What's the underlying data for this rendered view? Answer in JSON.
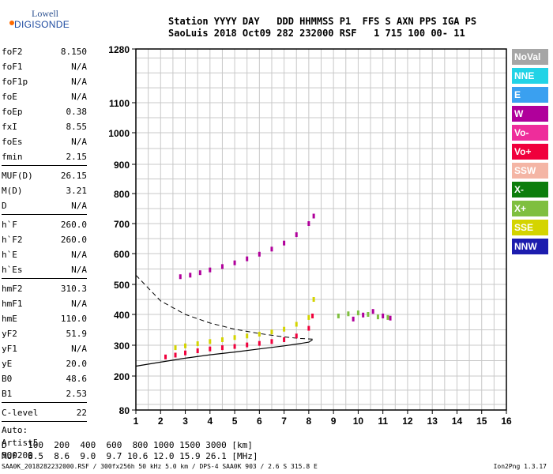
{
  "logo": {
    "line1": "Lowell",
    "line2": "DIGISONDE"
  },
  "header": {
    "line1": "Station YYYY DAY   DDD HHMMSS P1  FFS S AXN PPS IGA PS",
    "line2": "SaoLuis 2018 Oct09 282 232000 RSF   1 715 100 00- 11"
  },
  "params_group1": [
    {
      "key": "foF2",
      "val": "8.150"
    },
    {
      "key": "foF1",
      "val": "N/A"
    },
    {
      "key": "foF1p",
      "val": "N/A"
    },
    {
      "key": "foE",
      "val": "N/A"
    },
    {
      "key": "foEp",
      "val": "0.38"
    },
    {
      "key": "fxI",
      "val": "8.55"
    },
    {
      "key": "foEs",
      "val": "N/A"
    },
    {
      "key": "fmin",
      "val": "2.15"
    }
  ],
  "params_group2": [
    {
      "key": "MUF(D)",
      "val": "26.15"
    },
    {
      "key": "M(D)",
      "val": "3.21"
    },
    {
      "key": "D",
      "val": "N/A"
    }
  ],
  "params_group3": [
    {
      "key": "h`F",
      "val": "260.0"
    },
    {
      "key": "h`F2",
      "val": "260.0"
    },
    {
      "key": "h`E",
      "val": "N/A"
    },
    {
      "key": "h`Es",
      "val": "N/A"
    }
  ],
  "params_group4": [
    {
      "key": "hmF2",
      "val": "310.3"
    },
    {
      "key": "hmF1",
      "val": "N/A"
    },
    {
      "key": "hmE",
      "val": "110.0"
    },
    {
      "key": "yF2",
      "val": "51.9"
    },
    {
      "key": "yF1",
      "val": "N/A"
    },
    {
      "key": "yE",
      "val": "20.0"
    },
    {
      "key": "B0",
      "val": "48.6"
    },
    {
      "key": "B1",
      "val": "2.53"
    }
  ],
  "clevel": {
    "key": "C-level",
    "val": "22"
  },
  "auto": {
    "line1": "Auto:",
    "line2": "Artist5",
    "line3": "500200"
  },
  "legend": [
    {
      "label": "NoVal",
      "color": "#a6a6a6"
    },
    {
      "label": "NNE",
      "color": "#22d3e6"
    },
    {
      "label": "E",
      "color": "#3aa0f0"
    },
    {
      "label": "W",
      "color": "#b0009b"
    },
    {
      "label": "Vo-",
      "color": "#ee2d9b"
    },
    {
      "label": "Vo+",
      "color": "#f0003c"
    },
    {
      "label": "SSW",
      "color": "#f4b5a5"
    },
    {
      "label": "X-",
      "color": "#0c7d0c"
    },
    {
      "label": "X+",
      "color": "#7fbf3f"
    },
    {
      "label": "SSE",
      "color": "#d4d400"
    },
    {
      "label": "NNW",
      "color": "#1c1cae"
    }
  ],
  "bottom": {
    "line1": "D    100  200  400  600  800 1000 1500 3000 [km]",
    "line2": "MUF  8.5  8.6  9.0  9.7 10.6 12.0 15.9 26.1 [MHz]"
  },
  "footer": {
    "text": "SAA0K_2018282232000.RSF / 300fx256h 50 kHz 5.0 km / DPS-4 SAA0K 903 / 2.6 S 315.8 E",
    "version": "Ion2Png 1.3.17"
  },
  "chart_data": {
    "type": "scatter",
    "x_ticks": [
      1,
      2,
      3,
      4,
      5,
      6,
      7,
      8,
      9,
      10,
      11,
      12,
      13,
      14,
      15,
      16
    ],
    "y_ticks": [
      80,
      200,
      300,
      400,
      500,
      600,
      700,
      800,
      900,
      1000,
      1100,
      1280
    ],
    "xlim": [
      1,
      16
    ],
    "ylim": [
      80,
      1280
    ],
    "y_scale": "nonlinear",
    "grid": true,
    "series": [
      {
        "name": "Vo+",
        "color": "#f0003c",
        "trace": "F-layer O-mode echo band",
        "points": [
          [
            2.2,
            262
          ],
          [
            2.6,
            268
          ],
          [
            3.0,
            275
          ],
          [
            3.5,
            282
          ],
          [
            4.0,
            288
          ],
          [
            4.5,
            292
          ],
          [
            5.0,
            296
          ],
          [
            5.5,
            301
          ],
          [
            6.0,
            306
          ],
          [
            6.5,
            312
          ],
          [
            7.0,
            318
          ],
          [
            7.5,
            330
          ],
          [
            8.0,
            355
          ],
          [
            8.15,
            395
          ]
        ]
      },
      {
        "name": "SSE",
        "color": "#d4d400",
        "trace": "F-layer X-mode echo band",
        "points": [
          [
            2.6,
            292
          ],
          [
            3.0,
            298
          ],
          [
            3.5,
            305
          ],
          [
            4.0,
            312
          ],
          [
            4.5,
            318
          ],
          [
            5.0,
            325
          ],
          [
            5.5,
            330
          ],
          [
            6.0,
            336
          ],
          [
            6.5,
            343
          ],
          [
            7.0,
            352
          ],
          [
            7.5,
            368
          ],
          [
            8.0,
            390
          ],
          [
            8.2,
            450
          ]
        ]
      },
      {
        "name": "W",
        "color": "#b0009b",
        "trace": "second-hop echo band",
        "points": [
          [
            2.8,
            525
          ],
          [
            3.2,
            530
          ],
          [
            3.6,
            538
          ],
          [
            4.0,
            547
          ],
          [
            4.5,
            558
          ],
          [
            5.0,
            570
          ],
          [
            5.5,
            583
          ],
          [
            6.0,
            598
          ],
          [
            6.5,
            615
          ],
          [
            7.0,
            635
          ],
          [
            7.5,
            663
          ],
          [
            8.0,
            700
          ],
          [
            8.2,
            725
          ]
        ]
      },
      {
        "name": "X+",
        "color": "#7fbf3f",
        "trace": "spread echo cluster",
        "points": [
          [
            9.2,
            395
          ],
          [
            9.6,
            402
          ],
          [
            10.0,
            405
          ],
          [
            10.4,
            400
          ],
          [
            10.8,
            392
          ],
          [
            11.2,
            390
          ]
        ]
      },
      {
        "name": "W",
        "color": "#b0009b",
        "trace": "spread echo cluster",
        "points": [
          [
            9.8,
            385
          ],
          [
            10.2,
            398
          ],
          [
            10.6,
            410
          ],
          [
            11.0,
            395
          ],
          [
            11.3,
            388
          ]
        ]
      }
    ],
    "profile_curve": [
      [
        1.0,
        232
      ],
      [
        2.0,
        245
      ],
      [
        3.0,
        258
      ],
      [
        4.0,
        269
      ],
      [
        5.0,
        278
      ],
      [
        6.0,
        288
      ],
      [
        7.0,
        298
      ],
      [
        7.6,
        305
      ],
      [
        8.0,
        310
      ],
      [
        8.15,
        318
      ]
    ],
    "dashed_curve": [
      [
        1.0,
        530
      ],
      [
        2.0,
        445
      ],
      [
        3.0,
        400
      ],
      [
        4.0,
        372
      ],
      [
        5.0,
        352
      ],
      [
        6.0,
        338
      ],
      [
        7.0,
        327
      ],
      [
        7.6,
        322
      ],
      [
        8.15,
        320
      ]
    ]
  }
}
